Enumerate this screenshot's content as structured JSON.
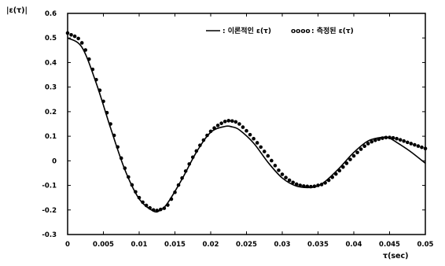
{
  "chart_data": {
    "type": "line",
    "ylabel": "|ε(τ)|",
    "xlabel": "τ(sec)",
    "xlim": [
      0,
      0.05
    ],
    "ylim": [
      -0.3,
      0.6
    ],
    "x_ticks": [
      "0",
      "0.005",
      "0.01",
      "0.015",
      "0.02",
      "0.025",
      "0.03",
      "0.035",
      "0.04",
      "0.045",
      "0.05"
    ],
    "y_ticks": [
      "0.6",
      "0.5",
      "0.4",
      "0.3",
      "0.2",
      "0.1",
      "0",
      "-0.1",
      "-0.2",
      "-0.3"
    ],
    "legend": {
      "placement": "top-right",
      "line_label": ": 이론적인 ε(τ)",
      "dots_marker": "oooo",
      "dots_label": ": 측정된 ε(τ)"
    },
    "series": [
      {
        "name": "이론적인 ε(τ)",
        "style": "line",
        "x": [
          0,
          0.002,
          0.004,
          0.006,
          0.008,
          0.01,
          0.012,
          0.013,
          0.014,
          0.016,
          0.018,
          0.02,
          0.022,
          0.023,
          0.024,
          0.026,
          0.028,
          0.03,
          0.032,
          0.034,
          0.035,
          0.036,
          0.038,
          0.04,
          0.042,
          0.044,
          0.045,
          0.046,
          0.048,
          0.05
        ],
        "y": [
          0.5,
          0.462,
          0.316,
          0.134,
          -0.036,
          -0.155,
          -0.205,
          -0.2,
          -0.171,
          -0.074,
          0.035,
          0.116,
          0.14,
          0.138,
          0.126,
          0.072,
          -0.006,
          -0.07,
          -0.103,
          -0.109,
          -0.102,
          -0.084,
          -0.029,
          0.034,
          0.081,
          0.096,
          0.092,
          0.075,
          0.036,
          -0.01
        ]
      },
      {
        "name": "측정된 ε(τ)",
        "style": "dots",
        "x": [
          0,
          0.002,
          0.004,
          0.006,
          0.008,
          0.01,
          0.012,
          0.013,
          0.014,
          0.016,
          0.018,
          0.02,
          0.022,
          0.023,
          0.024,
          0.026,
          0.028,
          0.03,
          0.032,
          0.034,
          0.035,
          0.036,
          0.038,
          0.04,
          0.042,
          0.044,
          0.045,
          0.046,
          0.048,
          0.05
        ],
        "y": [
          0.52,
          0.48,
          0.33,
          0.15,
          -0.03,
          -0.15,
          -0.2,
          -0.198,
          -0.18,
          -0.07,
          0.04,
          0.12,
          0.16,
          0.162,
          0.15,
          0.09,
          0.02,
          -0.055,
          -0.095,
          -0.105,
          -0.1,
          -0.09,
          -0.04,
          0.02,
          0.07,
          0.092,
          0.095,
          0.09,
          0.07,
          0.05
        ]
      }
    ],
    "grid": false
  }
}
